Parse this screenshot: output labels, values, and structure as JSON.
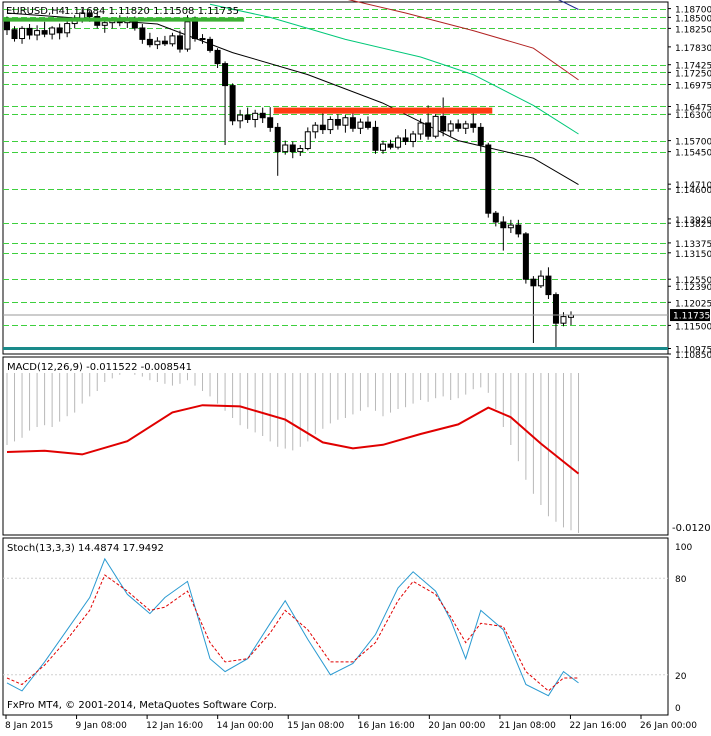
{
  "chart_data": [
    {
      "type": "candlestick",
      "title": "EURUSD,H4",
      "ohlc_label": "1.11684 1.11820 1.11508 1.11735",
      "last_price": "1.11735",
      "price_labels": [
        "1.18700",
        "1.18500",
        "1.18250",
        "1.17830",
        "1.17425",
        "1.17250",
        "1.16975",
        "1.16475",
        "1.16300",
        "1.15700",
        "1.15450",
        "1.14710",
        "1.14600",
        "1.13920",
        "1.13825",
        "1.13375",
        "1.13150",
        "1.12550",
        "1.12390",
        "1.12025",
        "1.11500",
        "1.10975",
        "1.10850"
      ],
      "level_lines": [
        1.187,
        1.185,
        1.1825,
        1.17425,
        1.1725,
        1.16975,
        1.16475,
        1.163,
        1.157,
        1.1545,
        1.146,
        1.13825,
        1.13375,
        1.1315,
        1.1255,
        1.12025,
        1.115
      ],
      "ylim": [
        1.1085,
        1.1885
      ],
      "candles": [
        {
          "o": 1.1842,
          "h": 1.1852,
          "l": 1.181,
          "c": 1.1822
        },
        {
          "o": 1.1822,
          "h": 1.183,
          "l": 1.1795,
          "c": 1.1802
        },
        {
          "o": 1.1802,
          "h": 1.183,
          "l": 1.179,
          "c": 1.1825
        },
        {
          "o": 1.1825,
          "h": 1.1835,
          "l": 1.18,
          "c": 1.181
        },
        {
          "o": 1.181,
          "h": 1.1832,
          "l": 1.1798,
          "c": 1.182
        },
        {
          "o": 1.182,
          "h": 1.184,
          "l": 1.1805,
          "c": 1.1812
        },
        {
          "o": 1.1812,
          "h": 1.183,
          "l": 1.18,
          "c": 1.1826
        },
        {
          "o": 1.1826,
          "h": 1.1836,
          "l": 1.18,
          "c": 1.1815
        },
        {
          "o": 1.1815,
          "h": 1.1842,
          "l": 1.1805,
          "c": 1.1836
        },
        {
          "o": 1.1836,
          "h": 1.1855,
          "l": 1.1825,
          "c": 1.1848
        },
        {
          "o": 1.1848,
          "h": 1.187,
          "l": 1.1838,
          "c": 1.186
        },
        {
          "o": 1.186,
          "h": 1.1866,
          "l": 1.184,
          "c": 1.1852
        },
        {
          "o": 1.1852,
          "h": 1.1862,
          "l": 1.1825,
          "c": 1.1832
        },
        {
          "o": 1.1832,
          "h": 1.1845,
          "l": 1.1815,
          "c": 1.1838
        },
        {
          "o": 1.1838,
          "h": 1.185,
          "l": 1.1825,
          "c": 1.1845
        },
        {
          "o": 1.1845,
          "h": 1.1855,
          "l": 1.183,
          "c": 1.1838
        },
        {
          "o": 1.1838,
          "h": 1.1852,
          "l": 1.1826,
          "c": 1.1848
        },
        {
          "o": 1.1848,
          "h": 1.1852,
          "l": 1.182,
          "c": 1.1826
        },
        {
          "o": 1.1826,
          "h": 1.1835,
          "l": 1.179,
          "c": 1.18
        },
        {
          "o": 1.18,
          "h": 1.1815,
          "l": 1.1782,
          "c": 1.1788
        },
        {
          "o": 1.1788,
          "h": 1.1805,
          "l": 1.1778,
          "c": 1.1796
        },
        {
          "o": 1.1796,
          "h": 1.1808,
          "l": 1.1785,
          "c": 1.179
        },
        {
          "o": 1.179,
          "h": 1.1815,
          "l": 1.1784,
          "c": 1.1808
        },
        {
          "o": 1.1808,
          "h": 1.182,
          "l": 1.177,
          "c": 1.1778
        },
        {
          "o": 1.1778,
          "h": 1.1855,
          "l": 1.1772,
          "c": 1.184
        },
        {
          "o": 1.184,
          "h": 1.1852,
          "l": 1.1795,
          "c": 1.1802
        },
        {
          "o": 1.1802,
          "h": 1.1812,
          "l": 1.179,
          "c": 1.18
        },
        {
          "o": 1.18,
          "h": 1.1806,
          "l": 1.177,
          "c": 1.1775
        },
        {
          "o": 1.1775,
          "h": 1.178,
          "l": 1.1735,
          "c": 1.1745
        },
        {
          "o": 1.1745,
          "h": 1.175,
          "l": 1.156,
          "c": 1.1695
        },
        {
          "o": 1.1695,
          "h": 1.17,
          "l": 1.1605,
          "c": 1.1615
        },
        {
          "o": 1.1615,
          "h": 1.164,
          "l": 1.1598,
          "c": 1.1628
        },
        {
          "o": 1.1628,
          "h": 1.1645,
          "l": 1.161,
          "c": 1.1618
        },
        {
          "o": 1.1618,
          "h": 1.164,
          "l": 1.16,
          "c": 1.1632
        },
        {
          "o": 1.1632,
          "h": 1.1645,
          "l": 1.161,
          "c": 1.1622
        },
        {
          "o": 1.1622,
          "h": 1.1646,
          "l": 1.159,
          "c": 1.16
        },
        {
          "o": 1.16,
          "h": 1.161,
          "l": 1.149,
          "c": 1.1545
        },
        {
          "o": 1.1545,
          "h": 1.157,
          "l": 1.1538,
          "c": 1.156
        },
        {
          "o": 1.156,
          "h": 1.1568,
          "l": 1.153,
          "c": 1.1545
        },
        {
          "o": 1.1545,
          "h": 1.156,
          "l": 1.1535,
          "c": 1.1552
        },
        {
          "o": 1.1552,
          "h": 1.16,
          "l": 1.1548,
          "c": 1.159
        },
        {
          "o": 1.159,
          "h": 1.1612,
          "l": 1.1575,
          "c": 1.1605
        },
        {
          "o": 1.1605,
          "h": 1.164,
          "l": 1.1585,
          "c": 1.1595
        },
        {
          "o": 1.1595,
          "h": 1.1625,
          "l": 1.1585,
          "c": 1.1618
        },
        {
          "o": 1.1618,
          "h": 1.163,
          "l": 1.1595,
          "c": 1.1605
        },
        {
          "o": 1.1605,
          "h": 1.1628,
          "l": 1.1588,
          "c": 1.1622
        },
        {
          "o": 1.1622,
          "h": 1.1632,
          "l": 1.159,
          "c": 1.1598
        },
        {
          "o": 1.1598,
          "h": 1.162,
          "l": 1.1585,
          "c": 1.1612
        },
        {
          "o": 1.1612,
          "h": 1.1625,
          "l": 1.1595,
          "c": 1.16
        },
        {
          "o": 1.16,
          "h": 1.1615,
          "l": 1.154,
          "c": 1.1548
        },
        {
          "o": 1.1548,
          "h": 1.157,
          "l": 1.154,
          "c": 1.1562
        },
        {
          "o": 1.1562,
          "h": 1.1572,
          "l": 1.155,
          "c": 1.1555
        },
        {
          "o": 1.1555,
          "h": 1.1582,
          "l": 1.155,
          "c": 1.1576
        },
        {
          "o": 1.1576,
          "h": 1.1596,
          "l": 1.156,
          "c": 1.1568
        },
        {
          "o": 1.1568,
          "h": 1.1592,
          "l": 1.1555,
          "c": 1.1585
        },
        {
          "o": 1.1585,
          "h": 1.162,
          "l": 1.1572,
          "c": 1.161
        },
        {
          "o": 1.161,
          "h": 1.165,
          "l": 1.1572,
          "c": 1.158
        },
        {
          "o": 1.158,
          "h": 1.163,
          "l": 1.1575,
          "c": 1.1625
        },
        {
          "o": 1.1625,
          "h": 1.1668,
          "l": 1.158,
          "c": 1.1592
        },
        {
          "o": 1.1592,
          "h": 1.1616,
          "l": 1.158,
          "c": 1.1608
        },
        {
          "o": 1.1608,
          "h": 1.1618,
          "l": 1.159,
          "c": 1.1598
        },
        {
          "o": 1.1598,
          "h": 1.1615,
          "l": 1.1585,
          "c": 1.1608
        },
        {
          "o": 1.1608,
          "h": 1.1632,
          "l": 1.1588,
          "c": 1.16
        },
        {
          "o": 1.16,
          "h": 1.161,
          "l": 1.1545,
          "c": 1.156
        },
        {
          "o": 1.156,
          "h": 1.1565,
          "l": 1.1395,
          "c": 1.1405
        },
        {
          "o": 1.1405,
          "h": 1.141,
          "l": 1.1375,
          "c": 1.1385
        },
        {
          "o": 1.1385,
          "h": 1.1398,
          "l": 1.132,
          "c": 1.1372
        },
        {
          "o": 1.1372,
          "h": 1.139,
          "l": 1.136,
          "c": 1.1378
        },
        {
          "o": 1.1378,
          "h": 1.139,
          "l": 1.135,
          "c": 1.1358
        },
        {
          "o": 1.1358,
          "h": 1.1362,
          "l": 1.1245,
          "c": 1.1255
        },
        {
          "o": 1.1255,
          "h": 1.1262,
          "l": 1.111,
          "c": 1.124
        },
        {
          "o": 1.124,
          "h": 1.1275,
          "l": 1.1235,
          "c": 1.1262
        },
        {
          "o": 1.1262,
          "h": 1.1282,
          "l": 1.121,
          "c": 1.122
        },
        {
          "o": 1.122,
          "h": 1.1225,
          "l": 1.1097,
          "c": 1.1155
        },
        {
          "o": 1.1155,
          "h": 1.118,
          "l": 1.1148,
          "c": 1.117
        },
        {
          "o": 1.11684,
          "h": 1.1182,
          "l": 1.11508,
          "c": 1.11735
        }
      ],
      "moving_averages": [
        {
          "color": "#000000",
          "values": [
            [
              0,
              1.186
            ],
            [
              20,
              1.1835
            ],
            [
              30,
              1.177
            ],
            [
              40,
              1.172
            ],
            [
              50,
              1.1655
            ],
            [
              60,
              1.157
            ],
            [
              70,
              1.153
            ],
            [
              76,
              1.147
            ]
          ]
        },
        {
          "color": "#00c878",
          "values": [
            [
              27,
              1.188
            ],
            [
              35,
              1.185
            ],
            [
              45,
              1.18
            ],
            [
              55,
              1.176
            ],
            [
              62,
              1.172
            ],
            [
              70,
              1.165
            ],
            [
              76,
              1.1585
            ]
          ]
        },
        {
          "color": "#b22222",
          "values": [
            [
              43,
              1.19
            ],
            [
              53,
              1.186
            ],
            [
              62,
              1.182
            ],
            [
              70,
              1.178
            ],
            [
              76,
              1.1708
            ]
          ]
        },
        {
          "color": "#1e2a8a",
          "values": [
            [
              71,
              1.191
            ],
            [
              76,
              1.1868
            ]
          ]
        }
      ],
      "highlight_lines": [
        {
          "color": "#3cb034",
          "price": 1.1845,
          "from": 0,
          "to": 31
        },
        {
          "color": "#ff3b12",
          "price": 1.1638,
          "from": 36,
          "to": 64
        },
        {
          "color": "#1a8a8a",
          "price": 1.10975,
          "from": 0,
          "to": 90
        }
      ]
    },
    {
      "type": "histogram",
      "title": "MACD(12,26,9) -0.011522 -0.008541",
      "bottom_label": "-0.01201",
      "signal_color": "#e00000",
      "signal": [
        [
          0,
          0.16
        ],
        [
          5,
          0.18
        ],
        [
          10,
          0.12
        ],
        [
          16,
          0.34
        ],
        [
          22,
          0.82
        ],
        [
          26,
          0.94
        ],
        [
          31,
          0.92
        ],
        [
          37,
          0.7
        ],
        [
          42,
          0.32
        ],
        [
          46,
          0.22
        ],
        [
          50,
          0.28
        ],
        [
          55,
          0.46
        ],
        [
          60,
          0.62
        ],
        [
          64,
          0.9
        ],
        [
          67,
          0.74
        ],
        [
          71,
          0.3
        ],
        [
          76,
          -0.2
        ]
      ],
      "histogram": [
        0.2,
        0.24,
        0.28,
        0.36,
        0.4,
        0.42,
        0.4,
        0.46,
        0.52,
        0.56,
        0.66,
        0.74,
        0.8,
        0.9,
        0.94,
        0.98,
        1.0,
        0.98,
        0.96,
        0.92,
        0.9,
        0.88,
        0.86,
        0.88,
        0.92,
        0.86,
        0.8,
        0.74,
        0.66,
        0.58,
        0.5,
        0.42,
        0.38,
        0.34,
        0.3,
        0.24,
        0.18,
        0.16,
        0.14,
        0.18,
        0.24,
        0.32,
        0.38,
        0.44,
        0.48,
        0.5,
        0.54,
        0.58,
        0.62,
        0.58,
        0.52,
        0.56,
        0.6,
        0.62,
        0.66,
        0.7,
        0.68,
        0.72,
        0.74,
        0.7,
        0.72,
        0.76,
        0.82,
        0.84,
        0.78,
        0.6,
        0.4,
        0.2,
        0.02,
        -0.12,
        -0.22,
        -0.3,
        -0.38,
        -0.42,
        -0.46,
        -0.48,
        -0.5
      ]
    },
    {
      "type": "line",
      "title": "Stoch(13,3,3) 14.4874 17.9492",
      "ylim": [
        0,
        100
      ],
      "tick_labels": [
        "100",
        "80",
        "20",
        "0"
      ],
      "series": [
        {
          "color": "#2a9ad1",
          "values": [
            [
              0,
              15
            ],
            [
              2,
              10
            ],
            [
              5,
              28
            ],
            [
              8,
              48
            ],
            [
              11,
              68
            ],
            [
              13,
              92
            ],
            [
              16,
              70
            ],
            [
              19,
              58
            ],
            [
              21,
              68
            ],
            [
              24,
              78
            ],
            [
              27,
              30
            ],
            [
              29,
              22
            ],
            [
              32,
              30
            ],
            [
              35,
              52
            ],
            [
              37,
              66
            ],
            [
              40,
              42
            ],
            [
              43,
              20
            ],
            [
              46,
              27
            ],
            [
              49,
              45
            ],
            [
              52,
              74
            ],
            [
              54,
              84
            ],
            [
              57,
              72
            ],
            [
              59,
              54
            ],
            [
              61,
              30
            ],
            [
              63,
              60
            ],
            [
              66,
              48
            ],
            [
              69,
              14
            ],
            [
              72,
              7
            ],
            [
              74,
              22
            ],
            [
              76,
              15
            ]
          ]
        },
        {
          "color": "#e00000",
          "dashed": true,
          "values": [
            [
              0,
              18
            ],
            [
              2,
              14
            ],
            [
              5,
              26
            ],
            [
              8,
              42
            ],
            [
              11,
              60
            ],
            [
              13,
              82
            ],
            [
              16,
              72
            ],
            [
              19,
              60
            ],
            [
              21,
              62
            ],
            [
              24,
              72
            ],
            [
              27,
              40
            ],
            [
              29,
              28
            ],
            [
              32,
              30
            ],
            [
              35,
              46
            ],
            [
              37,
              60
            ],
            [
              40,
              48
            ],
            [
              43,
              28
            ],
            [
              46,
              28
            ],
            [
              49,
              40
            ],
            [
              52,
              66
            ],
            [
              54,
              78
            ],
            [
              57,
              70
            ],
            [
              59,
              56
            ],
            [
              61,
              40
            ],
            [
              63,
              52
            ],
            [
              66,
              50
            ],
            [
              69,
              22
            ],
            [
              72,
              10
            ],
            [
              74,
              18
            ],
            [
              76,
              18
            ]
          ]
        }
      ],
      "copyright": "FxPro MT4, © 2001-2014, MetaQuotes Software Corp."
    }
  ],
  "time_labels": [
    "8 Jan 2015",
    "9 Jan 08:00",
    "12 Jan 16:00",
    "14 Jan 00:00",
    "15 Jan 08:00",
    "16 Jan 16:00",
    "20 Jan 00:00",
    "21 Jan 08:00",
    "22 Jan 16:00",
    "26 Jan 00:00"
  ]
}
